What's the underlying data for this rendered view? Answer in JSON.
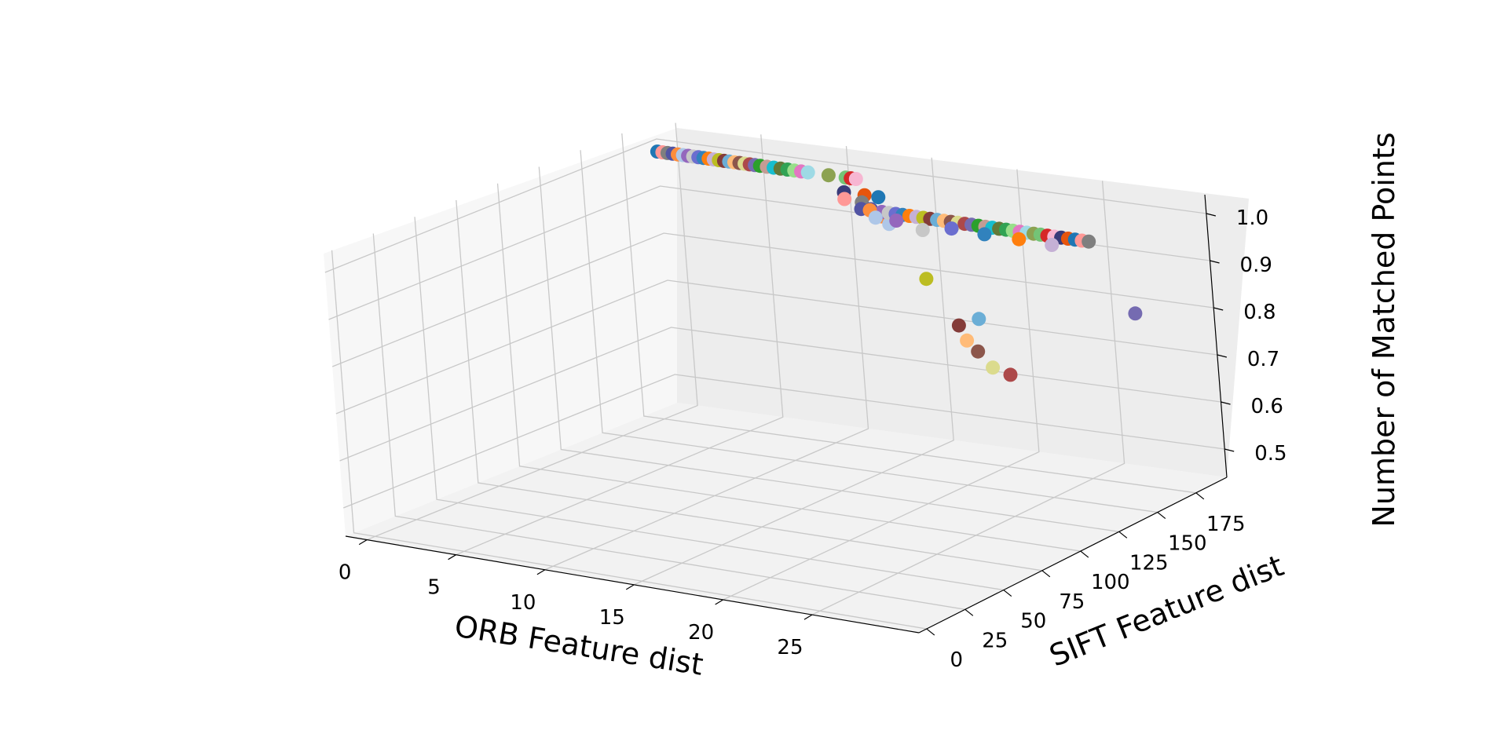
{
  "chart_data": {
    "type": "scatter",
    "projection": "3d",
    "title": "",
    "xlabel": "ORB Feature dist",
    "ylabel": "SIFT Feature dist",
    "zlabel": "Number of Matched Points",
    "xticks": [
      "0",
      "5",
      "10",
      "15",
      "20",
      "25"
    ],
    "yticks": [
      "0",
      "25",
      "50",
      "75",
      "100",
      "125",
      "150",
      "175"
    ],
    "zticks": [
      "0.5",
      "0.6",
      "0.7",
      "0.8",
      "0.9",
      "1.0"
    ],
    "grid": true,
    "legend": "none",
    "palette": [
      "#1f77b4",
      "#aec7e8",
      "#ff7f0e",
      "#ffbb78",
      "#2ca02c",
      "#98df8a",
      "#d62728",
      "#ff9896",
      "#9467bd",
      "#c5b0d5",
      "#8c564b",
      "#c49c94",
      "#e377c2",
      "#f7b6d2",
      "#7f7f7f",
      "#c7c7c7",
      "#bcbd22",
      "#dbdb8d",
      "#17becf",
      "#9edae5",
      "#393b79",
      "#5254a3",
      "#6b6ecf",
      "#843c39",
      "#ad494a",
      "#637939",
      "#8ca252",
      "#e6550d",
      "#fd8d3c",
      "#3182bd",
      "#6baed6",
      "#756bb1",
      "#31a354",
      "#74c476"
    ],
    "points": [
      [
        0.2,
        181,
        1.0
      ],
      [
        0.5,
        181,
        1.0
      ],
      [
        0.8,
        181,
        1.0
      ],
      [
        1.1,
        181,
        1.0
      ],
      [
        1.4,
        181,
        1.0
      ],
      [
        1.7,
        181,
        1.0
      ],
      [
        2.0,
        181,
        1.0
      ],
      [
        2.3,
        181,
        1.0
      ],
      [
        2.6,
        181,
        1.0
      ],
      [
        2.9,
        181,
        1.0
      ],
      [
        3.2,
        181,
        1.0
      ],
      [
        3.5,
        181,
        1.0
      ],
      [
        3.8,
        181,
        1.0
      ],
      [
        4.1,
        181,
        1.0
      ],
      [
        4.4,
        181,
        1.0
      ],
      [
        4.7,
        181,
        1.0
      ],
      [
        5.0,
        181,
        1.0
      ],
      [
        5.3,
        181,
        1.0
      ],
      [
        5.6,
        181,
        1.0
      ],
      [
        5.9,
        181,
        1.0
      ],
      [
        6.2,
        181,
        1.0
      ],
      [
        6.6,
        181,
        1.0
      ],
      [
        7.0,
        181,
        1.0
      ],
      [
        7.4,
        181,
        1.0
      ],
      [
        7.8,
        181,
        1.0
      ],
      [
        8.2,
        181,
        1.0
      ],
      [
        8.6,
        181,
        1.0
      ],
      [
        9.0,
        181,
        1.0
      ],
      [
        10.2,
        181,
        1.0
      ],
      [
        11.2,
        181,
        1.0
      ],
      [
        11.5,
        181,
        1.0
      ],
      [
        11.8,
        181,
        1.0
      ],
      [
        12.6,
        165,
        1.0
      ],
      [
        13.8,
        165,
        1.0
      ],
      [
        14.6,
        165,
        1.0
      ],
      [
        12.8,
        163,
        0.99
      ],
      [
        13.9,
        162,
        0.99
      ],
      [
        14.5,
        161,
        0.98
      ],
      [
        15.2,
        160,
        0.97
      ],
      [
        15.8,
        158,
        0.96
      ],
      [
        16.2,
        150,
        1.0
      ],
      [
        16.6,
        150,
        1.0
      ],
      [
        17.0,
        150,
        1.0
      ],
      [
        17.4,
        150,
        1.0
      ],
      [
        17.8,
        150,
        1.0
      ],
      [
        18.2,
        150,
        1.0
      ],
      [
        18.6,
        150,
        1.0
      ],
      [
        19.0,
        150,
        1.0
      ],
      [
        19.4,
        150,
        1.0
      ],
      [
        19.8,
        150,
        1.0
      ],
      [
        20.2,
        150,
        1.0
      ],
      [
        20.6,
        150,
        1.0
      ],
      [
        21.0,
        150,
        1.0
      ],
      [
        21.4,
        150,
        1.0
      ],
      [
        21.8,
        150,
        1.0
      ],
      [
        22.2,
        150,
        1.0
      ],
      [
        22.6,
        150,
        1.0
      ],
      [
        23.0,
        150,
        1.0
      ],
      [
        23.4,
        150,
        1.0
      ],
      [
        23.8,
        150,
        1.0
      ],
      [
        24.2,
        150,
        1.0
      ],
      [
        24.6,
        150,
        1.0
      ],
      [
        25.0,
        150,
        1.0
      ],
      [
        25.4,
        150,
        1.0
      ],
      [
        25.8,
        150,
        1.0
      ],
      [
        26.2,
        150,
        1.0
      ],
      [
        26.6,
        150,
        1.0
      ],
      [
        27.0,
        150,
        1.0
      ],
      [
        27.4,
        150,
        1.0
      ],
      [
        27.8,
        150,
        1.0
      ],
      [
        28.2,
        150,
        1.0
      ],
      [
        15.0,
        150,
        1.0
      ],
      [
        15.5,
        150,
        1.0
      ],
      [
        16.0,
        148,
        0.99
      ],
      [
        17.2,
        148,
        0.99
      ],
      [
        18.8,
        147,
        0.98
      ],
      [
        20.4,
        148,
        0.99
      ],
      [
        22.4,
        147,
        0.99
      ],
      [
        24.4,
        147,
        0.99
      ],
      [
        26.4,
        146,
        0.99
      ],
      [
        18.5,
        150,
        0.87
      ],
      [
        20.2,
        150,
        0.78
      ],
      [
        21.4,
        150,
        0.8
      ],
      [
        20.6,
        150,
        0.75
      ],
      [
        21.2,
        150,
        0.73
      ],
      [
        22.0,
        150,
        0.7
      ],
      [
        23.0,
        150,
        0.69
      ],
      [
        30.6,
        150,
        0.86
      ]
    ]
  }
}
